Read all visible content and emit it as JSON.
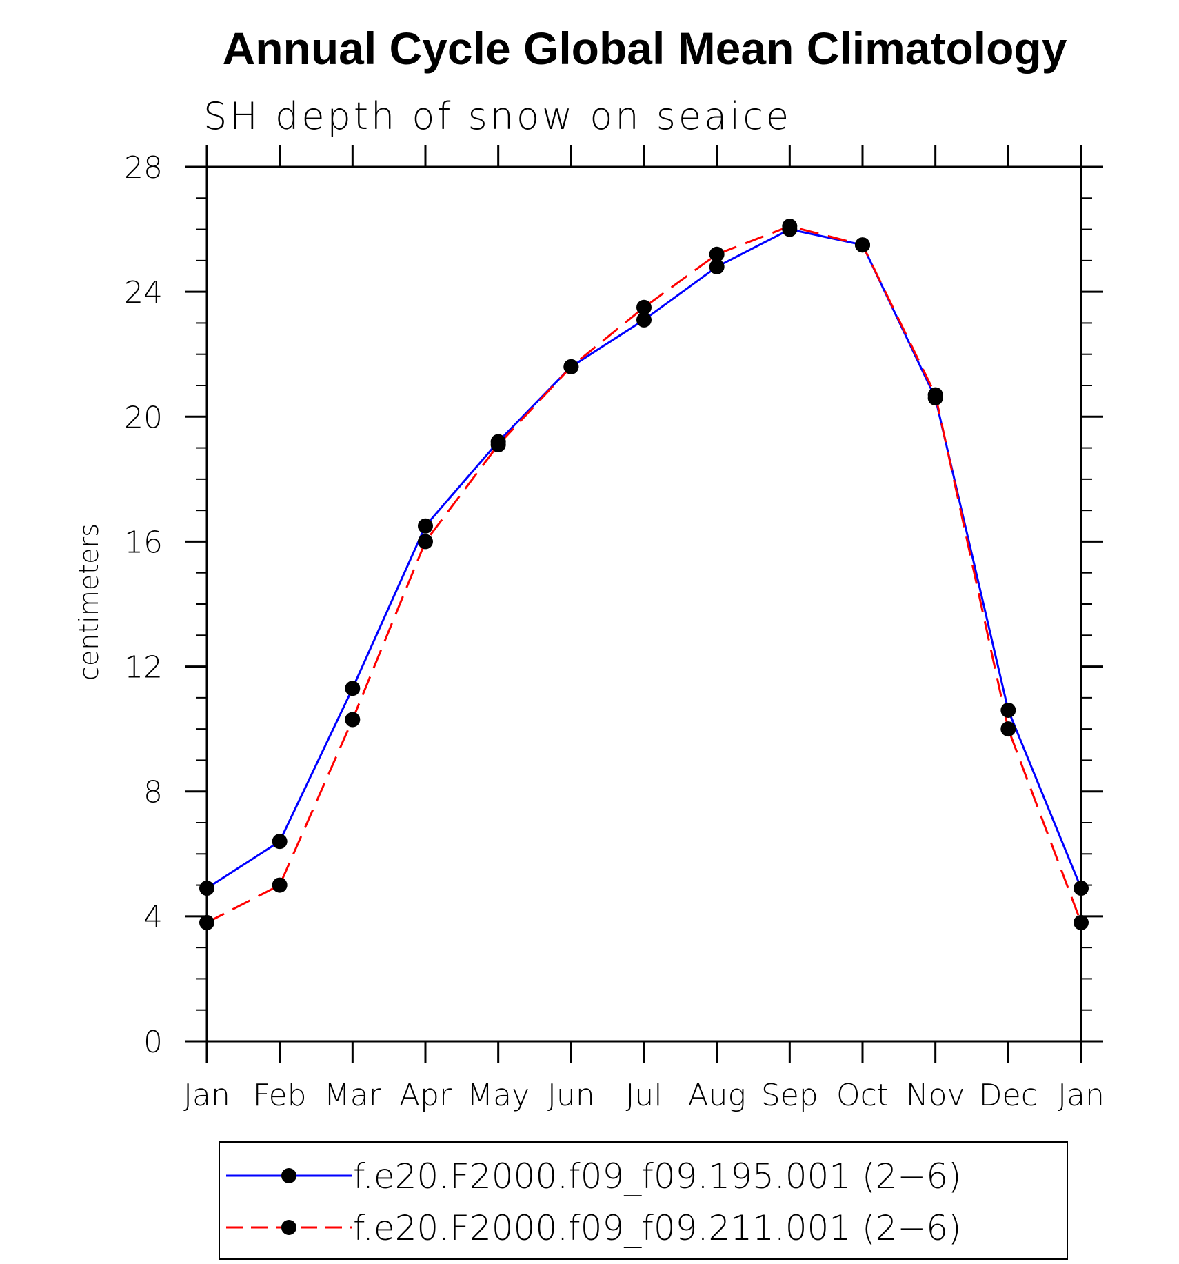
{
  "chart_data": {
    "type": "line",
    "title": "Annual Cycle Global Mean Climatology",
    "subtitle": "SH depth of snow on seaice",
    "xlabel": "",
    "ylabel": "centimeters",
    "categories": [
      "Jan",
      "Feb",
      "Mar",
      "Apr",
      "May",
      "Jun",
      "Jul",
      "Aug",
      "Sep",
      "Oct",
      "Nov",
      "Dec",
      "Jan"
    ],
    "ylim": [
      0,
      28
    ],
    "yticks": [
      "0",
      "4",
      "8",
      "12",
      "16",
      "20",
      "24",
      "28"
    ],
    "grid": false,
    "legend_position": "bottom",
    "series": [
      {
        "name": "f.e20.F2000.f09_f09.195.001 (2−6)",
        "color": "#0000ff",
        "line_style": "solid",
        "marker": "filled-circle",
        "values": [
          4.9,
          6.4,
          11.3,
          16.5,
          19.2,
          21.6,
          23.1,
          24.8,
          26.0,
          25.5,
          20.6,
          10.6,
          4.9
        ]
      },
      {
        "name": "f.e20.F2000.f09_f09.211.001 (2−6)",
        "color": "#ff0000",
        "line_style": "dashed",
        "marker": "filled-circle",
        "values": [
          3.8,
          5.0,
          10.3,
          16.0,
          19.1,
          21.6,
          23.5,
          25.2,
          26.1,
          25.5,
          20.7,
          10.0,
          3.8
        ]
      }
    ]
  }
}
